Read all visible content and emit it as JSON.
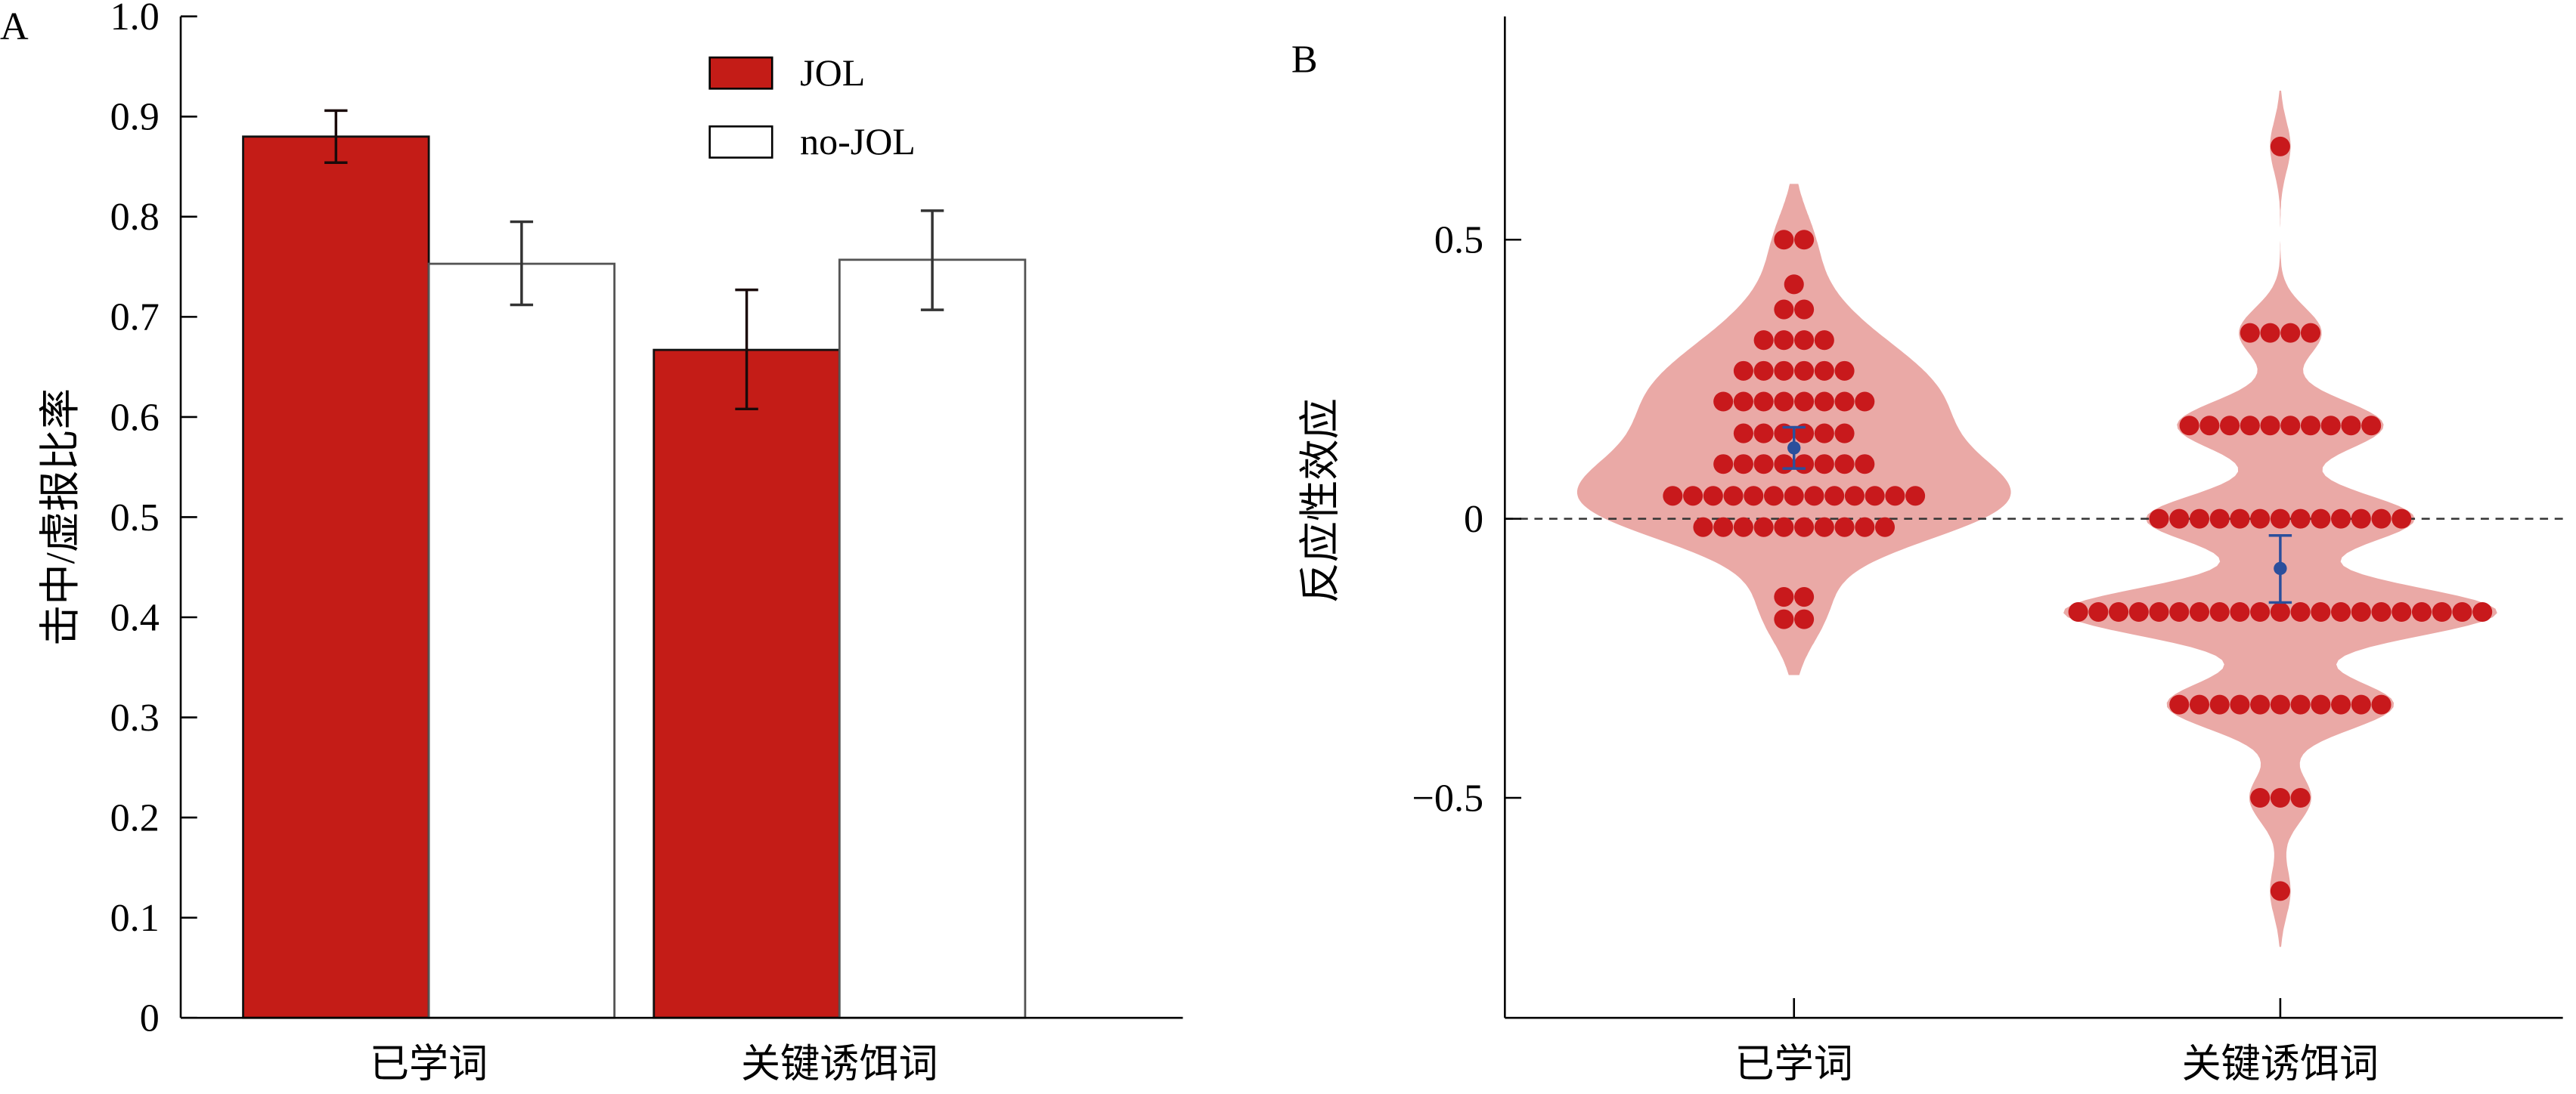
{
  "chart_data": [
    {
      "panel_label": "A",
      "type": "bar",
      "ylabel": "击中/虚报比率",
      "categories": [
        "已学词",
        "关键诱饵词"
      ],
      "ylim": [
        0,
        1.0
      ],
      "yticks": [
        "0",
        "0.1",
        "0.2",
        "0.3",
        "0.4",
        "0.5",
        "0.6",
        "0.7",
        "0.8",
        "0.9",
        "1.0"
      ],
      "grid": false,
      "legend_position": "top-right",
      "series": [
        {
          "name": "JOL",
          "color": "#c41c17",
          "values": [
            0.88,
            0.667
          ],
          "error_low": [
            0.854,
            0.608
          ],
          "error_high": [
            0.906,
            0.727
          ]
        },
        {
          "name": "no-JOL",
          "color": "#ffffff",
          "values": [
            0.753,
            0.757
          ],
          "error_low": [
            0.712,
            0.707
          ],
          "error_high": [
            0.795,
            0.806
          ]
        }
      ]
    },
    {
      "panel_label": "B",
      "type": "scatter",
      "subtype": "violin-swarm",
      "ylabel": "反应性效应",
      "categories": [
        "已学词",
        "关键诱饵词"
      ],
      "ylim": [
        -0.85,
        0.9
      ],
      "yticks": [
        "0.5",
        "0",
        "−0.5"
      ],
      "ytick_values": [
        0.5,
        0,
        -0.5
      ],
      "reference_line": 0,
      "colors": {
        "dots": "#c8191c",
        "violin": "#eaa9a6",
        "mean": "#2b4f9c"
      },
      "groups": [
        {
          "category": "已学词",
          "mean": 0.127,
          "ci_low": 0.09,
          "ci_high": 0.164,
          "rows": [
            {
              "value": 0.5,
              "n": 2
            },
            {
              "value": 0.42,
              "n": 1
            },
            {
              "value": 0.375,
              "n": 2
            },
            {
              "value": 0.32,
              "n": 4
            },
            {
              "value": 0.265,
              "n": 6
            },
            {
              "value": 0.21,
              "n": 8
            },
            {
              "value": 0.153,
              "n": 6
            },
            {
              "value": 0.098,
              "n": 8
            },
            {
              "value": 0.041,
              "n": 13
            },
            {
              "value": -0.015,
              "n": 10
            },
            {
              "value": -0.14,
              "n": 2
            },
            {
              "value": -0.18,
              "n": 2
            }
          ]
        },
        {
          "category": "关键诱饵词",
          "mean": -0.089,
          "ci_low": -0.15,
          "ci_high": -0.03,
          "rows": [
            {
              "value": 0.667,
              "n": 1
            },
            {
              "value": 0.333,
              "n": 4
            },
            {
              "value": 0.167,
              "n": 10
            },
            {
              "value": 0.0,
              "n": 13
            },
            {
              "value": -0.167,
              "n": 21
            },
            {
              "value": -0.333,
              "n": 11
            },
            {
              "value": -0.5,
              "n": 3
            },
            {
              "value": -0.667,
              "n": 1
            }
          ]
        }
      ]
    }
  ]
}
